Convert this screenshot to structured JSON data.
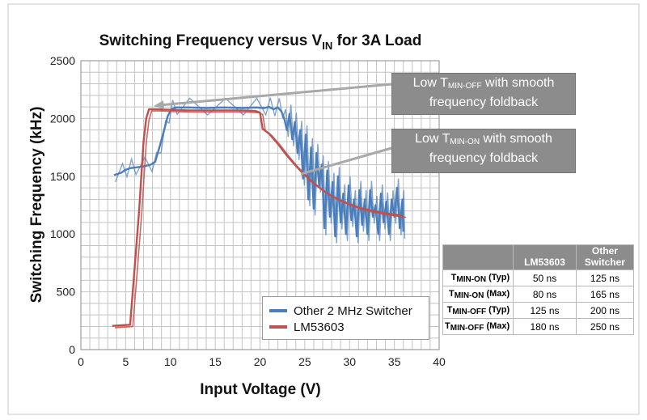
{
  "chart_data": {
    "type": "line",
    "title": {
      "main": "Switching Frequency versus V",
      "sub": "IN",
      "tail": " for 3A Load"
    },
    "xlabel": "Input Voltage (V)",
    "ylabel": "Switching Frequency (kHz)",
    "xlim": [
      0,
      40
    ],
    "ylim": [
      0,
      2500
    ],
    "xticks": [
      "0",
      "5",
      "10",
      "15",
      "20",
      "25",
      "30",
      "35",
      "40"
    ],
    "yticks": [
      "0",
      "500",
      "1000",
      "1500",
      "2000",
      "2500"
    ],
    "grid": true,
    "legend_position": "bottom-center",
    "series": [
      {
        "name": "Other 2 MHz Switcher",
        "color": "#4a7ebb",
        "points": [
          [
            3.7,
            1510
          ],
          [
            4.5,
            1530
          ],
          [
            5.0,
            1555
          ],
          [
            5.5,
            1570
          ],
          [
            6.0,
            1575
          ],
          [
            7.0,
            1585
          ],
          [
            7.8,
            1600
          ],
          [
            8.3,
            1625
          ],
          [
            8.8,
            1760
          ],
          [
            9.3,
            1900
          ],
          [
            9.7,
            2020
          ],
          [
            10.1,
            2080
          ],
          [
            10.6,
            2095
          ],
          [
            12,
            2095
          ],
          [
            14,
            2090
          ],
          [
            16,
            2095
          ],
          [
            18,
            2090
          ],
          [
            19.5,
            2095
          ],
          [
            20.5,
            2090
          ],
          [
            21.0,
            2100
          ],
          [
            21.5,
            2080
          ],
          [
            22.0,
            2095
          ],
          [
            22.4,
            2060
          ],
          [
            22.7,
            2000
          ],
          [
            23.0,
            1900
          ],
          [
            23.3,
            2040
          ],
          [
            23.6,
            1820
          ],
          [
            23.9,
            1970
          ],
          [
            24.2,
            1700
          ],
          [
            24.5,
            1900
          ],
          [
            24.8,
            1480
          ],
          [
            25.1,
            1860
          ],
          [
            25.4,
            1300
          ],
          [
            25.7,
            1750
          ],
          [
            26.0,
            1220
          ],
          [
            26.3,
            1700
          ],
          [
            26.6,
            1420
          ],
          [
            26.9,
            1600
          ],
          [
            27.2,
            1050
          ],
          [
            27.5,
            1550
          ],
          [
            27.8,
            1150
          ],
          [
            28.1,
            1450
          ],
          [
            28.4,
            980
          ],
          [
            28.7,
            1500
          ],
          [
            29.0,
            1100
          ],
          [
            29.3,
            1350
          ],
          [
            29.6,
            1000
          ],
          [
            29.9,
            1420
          ],
          [
            30.2,
            1120
          ],
          [
            30.5,
            1300
          ],
          [
            30.8,
            980
          ],
          [
            31.1,
            1380
          ],
          [
            31.4,
            1080
          ],
          [
            31.7,
            1300
          ],
          [
            32.0,
            1000
          ],
          [
            32.3,
            1380
          ],
          [
            32.6,
            1150
          ],
          [
            32.9,
            1250
          ],
          [
            33.2,
            1000
          ],
          [
            33.5,
            1350
          ],
          [
            33.8,
            1100
          ],
          [
            34.1,
            1280
          ],
          [
            34.4,
            1000
          ],
          [
            34.7,
            1300
          ],
          [
            35.0,
            1150
          ],
          [
            35.3,
            1400
          ],
          [
            35.6,
            1050
          ],
          [
            35.9,
            1300
          ],
          [
            36.0,
            1020
          ]
        ]
      },
      {
        "name": "LM53603",
        "color": "#c0504d",
        "points": [
          [
            3.5,
            205
          ],
          [
            4.5,
            210
          ],
          [
            5.5,
            215
          ],
          [
            6.0,
            700
          ],
          [
            6.5,
            1200
          ],
          [
            7.0,
            1800
          ],
          [
            7.3,
            2000
          ],
          [
            7.6,
            2080
          ],
          [
            8.5,
            2080
          ],
          [
            10,
            2075
          ],
          [
            12,
            2070
          ],
          [
            14,
            2070
          ],
          [
            16,
            2070
          ],
          [
            18,
            2070
          ],
          [
            19.5,
            2065
          ],
          [
            20.0,
            2050
          ],
          [
            20.3,
            1910
          ],
          [
            21.0,
            1870
          ],
          [
            22,
            1780
          ],
          [
            23,
            1680
          ],
          [
            24,
            1590
          ],
          [
            25,
            1510
          ],
          [
            26,
            1440
          ],
          [
            27,
            1380
          ],
          [
            28,
            1330
          ],
          [
            29,
            1290
          ],
          [
            30,
            1260
          ],
          [
            31,
            1230
          ],
          [
            32,
            1210
          ],
          [
            33,
            1195
          ],
          [
            34,
            1180
          ],
          [
            35,
            1170
          ],
          [
            36,
            1160
          ]
        ]
      }
    ]
  },
  "callouts": [
    {
      "pre": "Low T",
      "sub": "MIN-OFF",
      "post": " with smooth",
      "line2": "frequency foldback"
    },
    {
      "pre": "Low T",
      "sub": "MIN-ON",
      "post": " with smooth",
      "line2": "frequency foldback"
    }
  ],
  "table": {
    "headers": [
      "",
      "LM53603",
      "Other Switcher"
    ],
    "rows": [
      {
        "label_pre": "T",
        "label_sub": "MIN-ON",
        "label_post": " (Typ)",
        "lm": "50 ns",
        "other": "125 ns"
      },
      {
        "label_pre": "T",
        "label_sub": "MIN-ON",
        "label_post": " (Max)",
        "lm": "80 ns",
        "other": "165 ns"
      },
      {
        "label_pre": "T",
        "label_sub": "MIN-OFF",
        "label_post": " (Typ)",
        "lm": "125 ns",
        "other": "200 ns"
      },
      {
        "label_pre": "T",
        "label_sub": "MIN-OFF",
        "label_post": " (Max)",
        "lm": "180 ns",
        "other": "250 ns"
      }
    ]
  }
}
